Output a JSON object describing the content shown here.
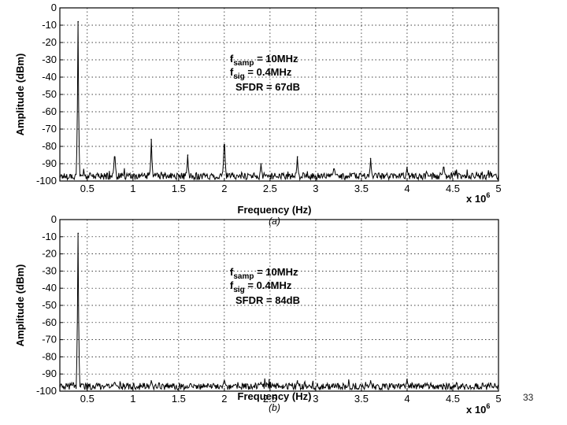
{
  "page_number": "33",
  "chart_data": [
    {
      "type": "line",
      "panel_label": "(a)",
      "xlabel": "Frequency (Hz)",
      "ylabel": "Amplitude (dBm)",
      "x_multiplier": "x 10",
      "x_exponent": "6",
      "xlim": [
        0.2,
        5
      ],
      "ylim": [
        -100,
        0
      ],
      "xticks": [
        "0.5",
        "1",
        "1.5",
        "2",
        "2.5",
        "3",
        "3.5",
        "4",
        "4.5",
        "5"
      ],
      "yticks": [
        "0",
        "-10",
        "-20",
        "-30",
        "-40",
        "-50",
        "-60",
        "-70",
        "-80",
        "-90",
        "-100"
      ],
      "grid": true,
      "annotation": {
        "line1_prefix": "f",
        "line1_sub": "samp",
        "line1_rest": " = 10MHz",
        "line2_prefix": "f",
        "line2_sub": "sig",
        "line2_rest": " = 0.4MHz",
        "line3": "SFDR = 67dB"
      },
      "noise_floor": -97,
      "peaks": [
        {
          "x": 0.4,
          "y": -8
        },
        {
          "x": 0.8,
          "y": -86
        },
        {
          "x": 1.2,
          "y": -76
        },
        {
          "x": 1.6,
          "y": -85
        },
        {
          "x": 2.0,
          "y": -79
        },
        {
          "x": 2.4,
          "y": -90
        },
        {
          "x": 2.8,
          "y": -86
        },
        {
          "x": 3.2,
          "y": -93
        },
        {
          "x": 3.6,
          "y": -87
        },
        {
          "x": 4.0,
          "y": -92
        },
        {
          "x": 4.4,
          "y": -92
        }
      ]
    },
    {
      "type": "line",
      "panel_label": "(b)",
      "xlabel": "Frequency (Hz)",
      "ylabel": "Amplitude (dBm)",
      "x_multiplier": "x 10",
      "x_exponent": "6",
      "xlim": [
        0.2,
        5
      ],
      "ylim": [
        -100,
        0
      ],
      "xticks": [
        "0.5",
        "1",
        "1.5",
        "2",
        "2.5",
        "3",
        "3.5",
        "4",
        "4.5",
        "5"
      ],
      "yticks": [
        "0",
        "-10",
        "-20",
        "-30",
        "-40",
        "-50",
        "-60",
        "-70",
        "-80",
        "-90",
        "-100"
      ],
      "grid": true,
      "annotation": {
        "line1_prefix": "f",
        "line1_sub": "samp",
        "line1_rest": " = 10MHz",
        "line2_prefix": "f",
        "line2_sub": "sig",
        "line2_rest": " = 0.4MHz",
        "line3": "SFDR = 84dB"
      },
      "noise_floor": -97,
      "peaks": [
        {
          "x": 0.4,
          "y": -8
        },
        {
          "x": 0.8,
          "y": -95
        },
        {
          "x": 1.2,
          "y": -94
        },
        {
          "x": 2.0,
          "y": -94
        },
        {
          "x": 2.4,
          "y": -95
        },
        {
          "x": 2.8,
          "y": -94
        },
        {
          "x": 3.6,
          "y": -94
        },
        {
          "x": 4.0,
          "y": -93
        }
      ]
    }
  ]
}
